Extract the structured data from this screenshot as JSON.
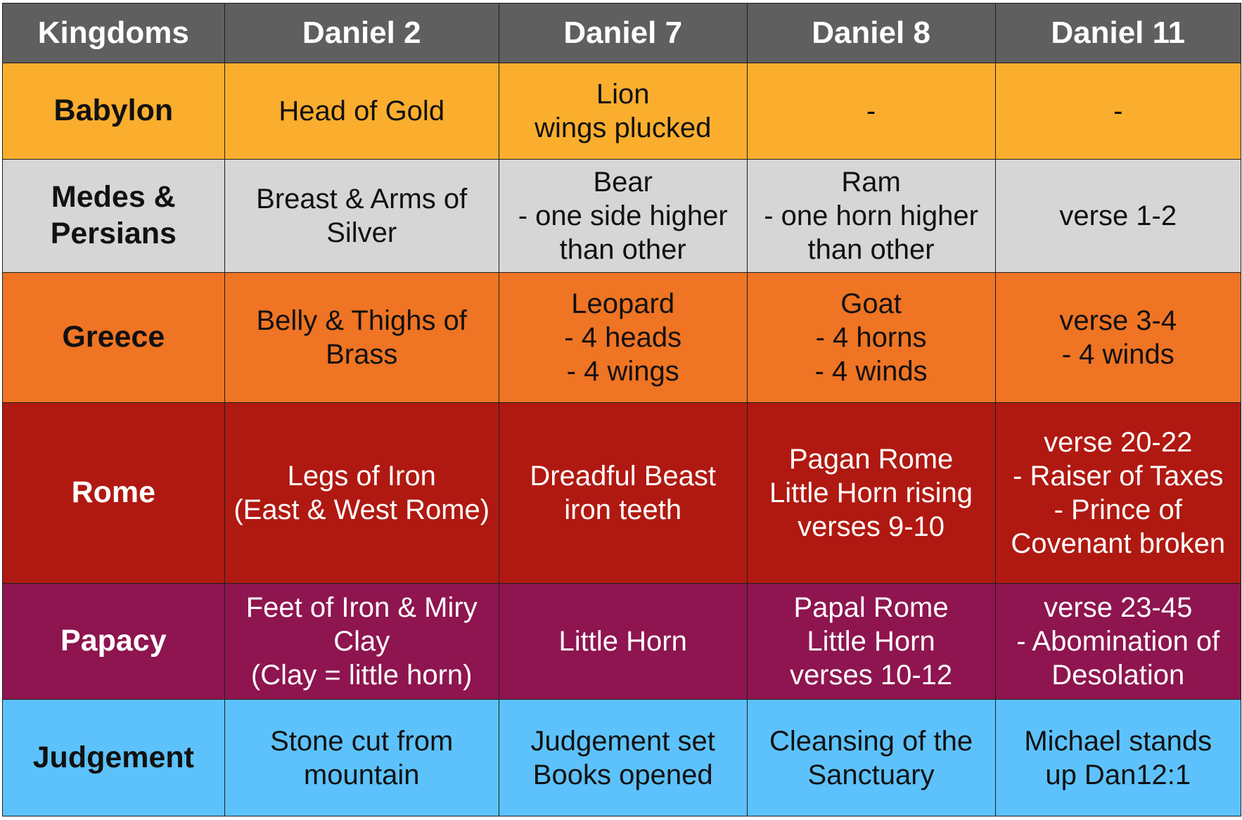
{
  "header": {
    "cols": [
      "Kingdoms",
      "Daniel 2",
      "Daniel 7",
      "Daniel 8",
      "Daniel 11"
    ]
  },
  "rows": [
    {
      "kingdom": "Babylon",
      "bg": "#FBAE2E",
      "fg": "#111111",
      "cells": [
        "Head of Gold",
        "Lion\nwings plucked",
        "-",
        "-"
      ]
    },
    {
      "kingdom": "Medes &\nPersians",
      "bg": "#D6D6D6",
      "fg": "#111111",
      "cells": [
        "Breast & Arms of\nSilver",
        "Bear\n- one side higher\nthan other",
        "Ram\n- one horn higher\nthan other",
        "verse 1-2"
      ]
    },
    {
      "kingdom": "Greece",
      "bg": "#EF7423",
      "fg": "#111111",
      "cells": [
        "Belly & Thighs of\nBrass",
        "Leopard\n- 4 heads\n- 4 wings",
        "Goat\n- 4 horns\n- 4 winds",
        "verse 3-4\n- 4 winds"
      ]
    },
    {
      "kingdom": "Rome",
      "bg": "#B01911",
      "fg": "#ffffff",
      "cells": [
        "Legs of Iron\n(East & West Rome)",
        "Dreadful Beast\niron teeth",
        "Pagan Rome\nLittle Horn rising\nverses 9-10",
        "verse 20-22\n- Raiser of Taxes\n- Prince of\nCovenant broken"
      ]
    },
    {
      "kingdom": "Papacy",
      "bg": "#8E154F",
      "fg": "#ffffff",
      "cells": [
        "Feet of Iron & Miry\nClay\n(Clay = little horn)",
        "Little Horn",
        "Papal Rome\nLittle Horn\nverses 10-12",
        "verse 23-45\n- Abomination of\nDesolation"
      ]
    },
    {
      "kingdom": "Judgement",
      "bg": "#5DC2FB",
      "fg": "#111111",
      "cells": [
        "Stone cut from\nmountain",
        "Judgement set\nBooks opened",
        "Cleansing of the\nSanctuary",
        "Michael stands\nup Dan12:1"
      ]
    }
  ],
  "colors": {
    "header_bg": "#5F5F5F",
    "header_fg": "#FFFFFF",
    "border": "#1E1E1E"
  }
}
